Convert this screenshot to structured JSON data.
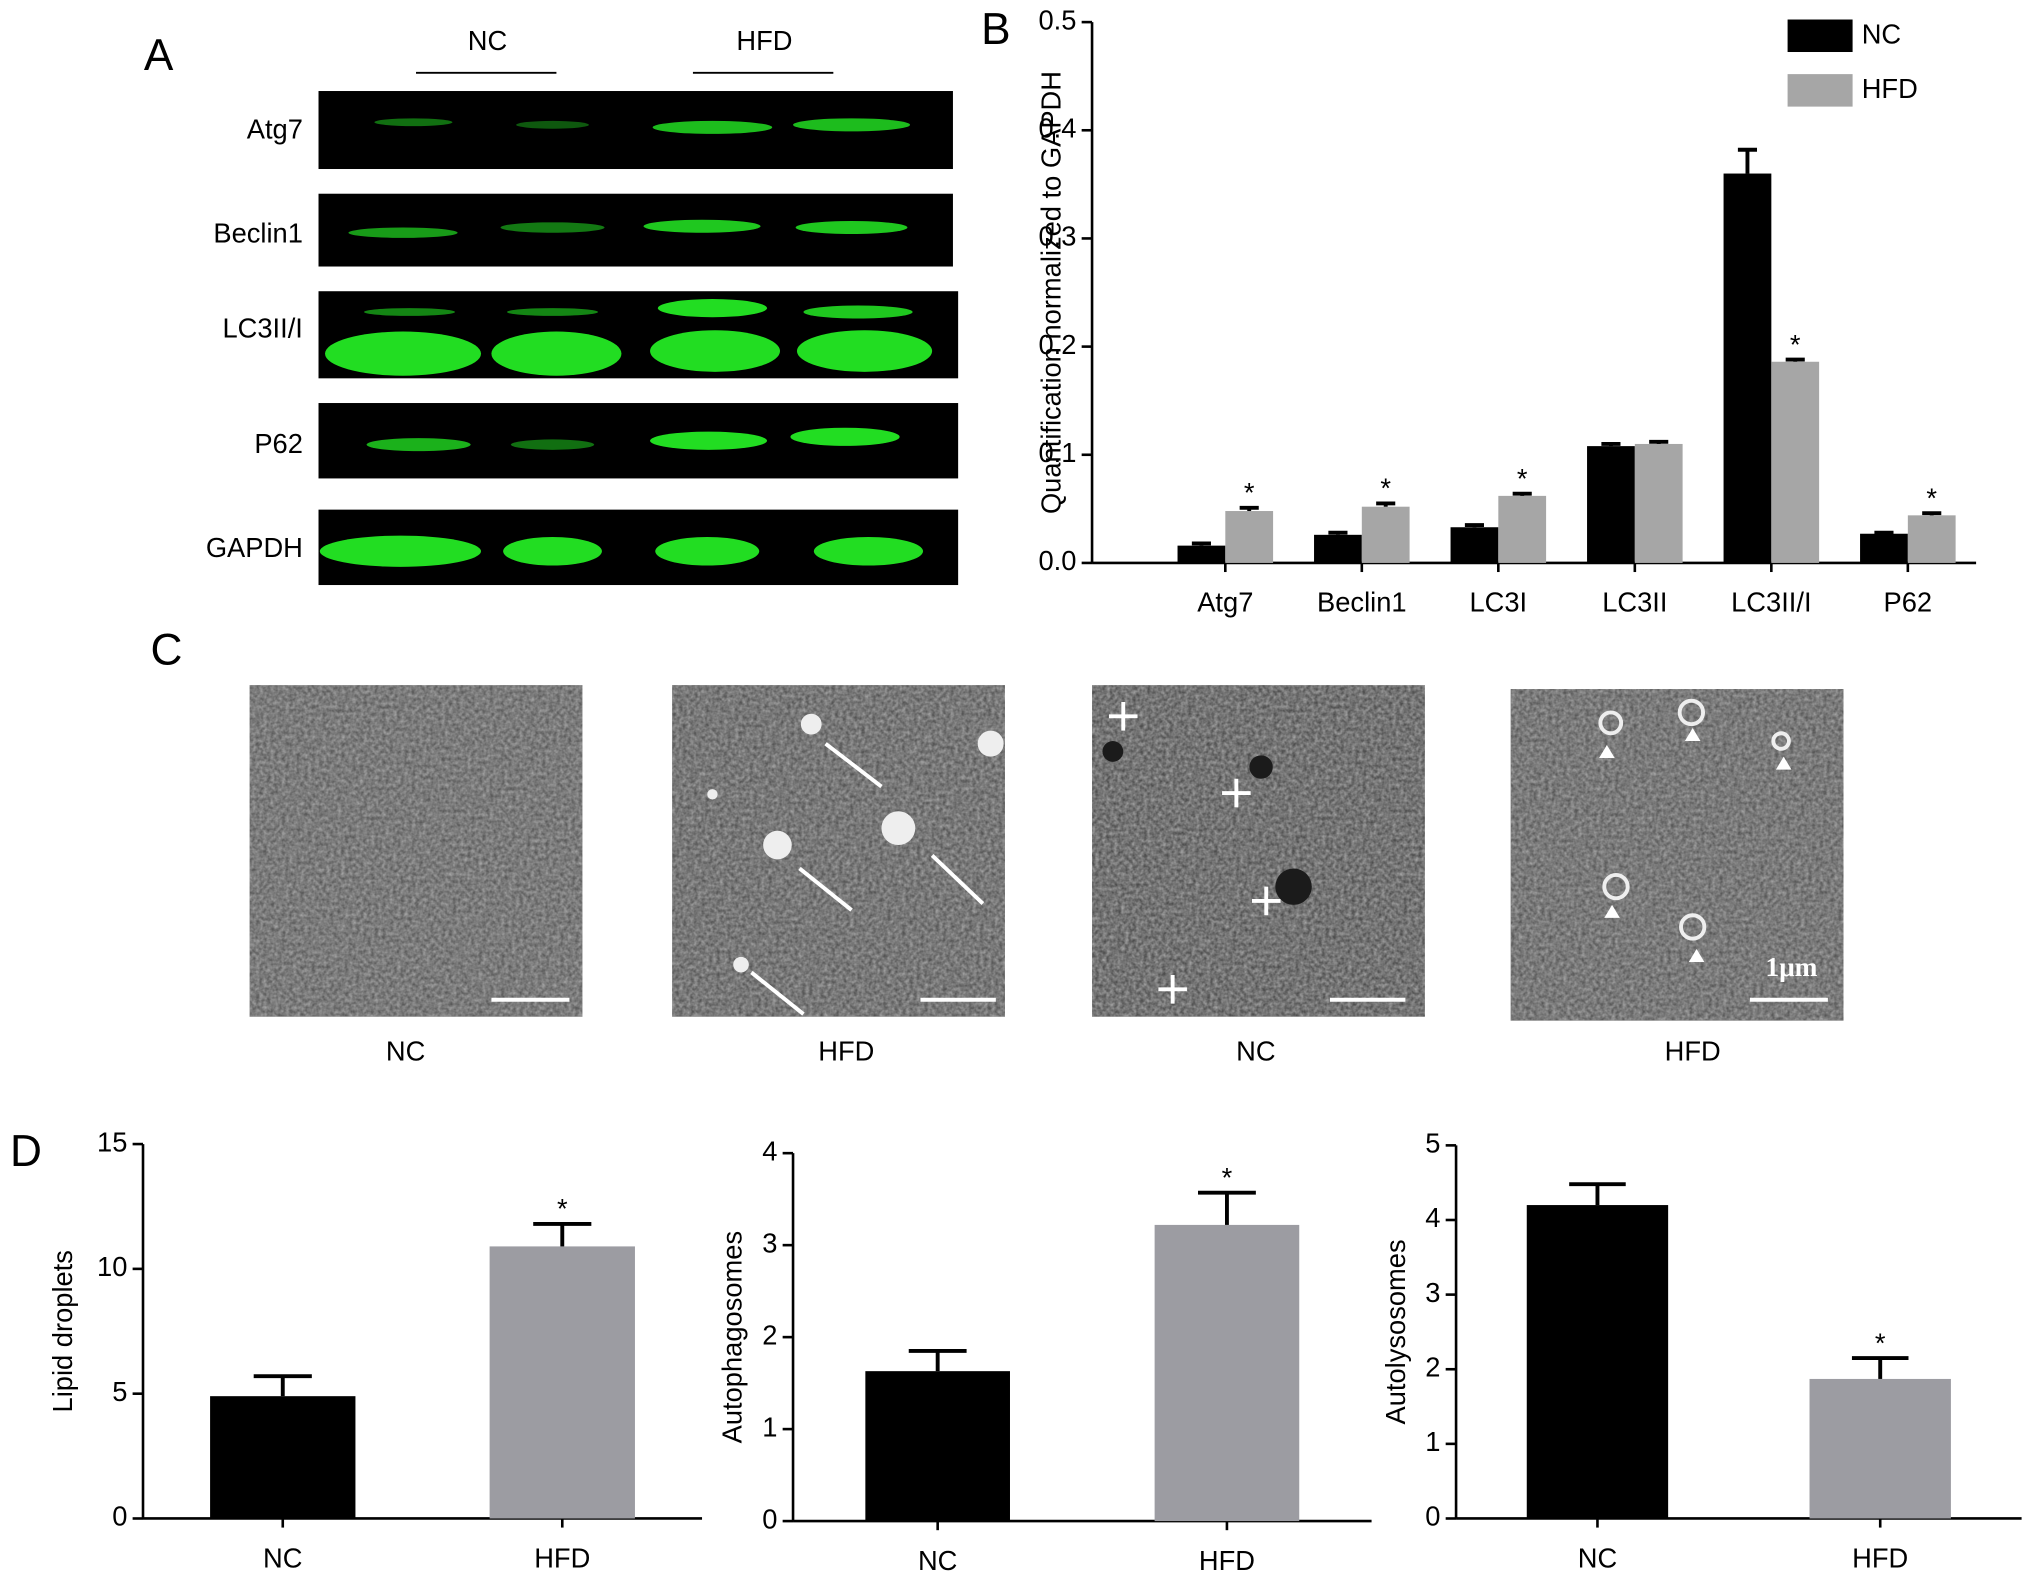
{
  "panel_labels": [
    "A",
    "B",
    "C",
    "D"
  ],
  "blot": {
    "groups": [
      "NC",
      "HFD"
    ],
    "rows": [
      "Atg7",
      "Beclin1",
      "LC3II/I",
      "P62",
      "GAPDH"
    ]
  },
  "micrographs": {
    "labels": [
      "NC",
      "HFD",
      "NC",
      "HFD"
    ],
    "scale_bar": "1μm"
  },
  "chart_data": [
    {
      "type": "bar",
      "ylabel": "Quantification normalized to GAPDH",
      "categories": [
        "Atg7",
        "Beclin1",
        "LC3I",
        "LC3II",
        "LC3II/I",
        "P62"
      ],
      "series": [
        {
          "name": "NC",
          "color": "#000000",
          "values": [
            0.016,
            0.026,
            0.033,
            0.108,
            0.36,
            0.027
          ],
          "errors": [
            0.002,
            0.002,
            0.002,
            0.002,
            0.022,
            0.001
          ]
        },
        {
          "name": "HFD",
          "color": "#a6a6a6",
          "values": [
            0.048,
            0.052,
            0.062,
            0.11,
            0.186,
            0.044
          ],
          "errors": [
            0.003,
            0.003,
            0.002,
            0.002,
            0.002,
            0.002
          ],
          "significance": [
            "*",
            "*",
            "*",
            null,
            "*",
            "*"
          ]
        }
      ],
      "ylim": [
        0,
        0.5
      ],
      "yticks": [
        {
          "value": 0,
          "label": "0.0"
        },
        0.1,
        0.2,
        0.3,
        0.4,
        0.5
      ],
      "legend": "upper right"
    },
    {
      "type": "bar",
      "ylabel": "Lipid droplets",
      "categories": [
        "NC",
        "HFD"
      ],
      "values": [
        4.9,
        10.9
      ],
      "errors": [
        0.8,
        0.9
      ],
      "colors": [
        "#000000",
        "#9c9ca2"
      ],
      "significance": [
        null,
        "*"
      ],
      "ylim": [
        0,
        15
      ],
      "yticks": [
        0,
        5,
        10,
        15
      ]
    },
    {
      "type": "bar",
      "ylabel": "Autophagosomes",
      "categories": [
        "NC",
        "HFD"
      ],
      "values": [
        1.63,
        3.22
      ],
      "errors": [
        0.22,
        0.35
      ],
      "colors": [
        "#000000",
        "#9c9ca2"
      ],
      "significance": [
        null,
        "*"
      ],
      "ylim": [
        0,
        4
      ],
      "yticks": [
        0,
        1,
        2,
        3,
        4
      ]
    },
    {
      "type": "bar",
      "ylabel": "Autolysosomes",
      "categories": [
        "NC",
        "HFD"
      ],
      "values": [
        4.2,
        1.87
      ],
      "errors": [
        0.28,
        0.28
      ],
      "colors": [
        "#000000",
        "#9c9ca2"
      ],
      "significance": [
        null,
        "*"
      ],
      "ylim": [
        0,
        5
      ],
      "yticks": [
        0,
        1,
        2,
        3,
        4,
        5
      ]
    }
  ]
}
